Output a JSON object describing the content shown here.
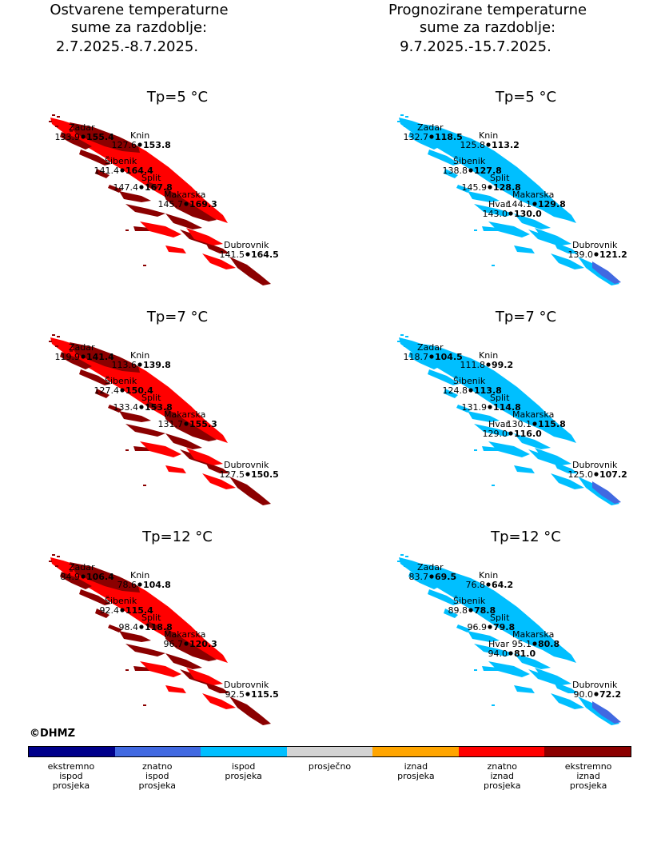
{
  "titles": {
    "left": {
      "line1": "Ostvarene temperaturne",
      "line2": "sume za razdoblje:",
      "line3": "2.7.2025.-8.7.2025."
    },
    "right": {
      "line1": "Prognozirane temperaturne",
      "line2": "sume za razdoblje:",
      "line3": "9.7.2025.-15.7.2025."
    }
  },
  "colors": {
    "left_map_main": "#ff0000",
    "left_map_dark": "#8b0000",
    "right_map_main": "#00bfff",
    "right_map_dark": "#4169e1",
    "marker": "#000000"
  },
  "panels": [
    {
      "side": "left",
      "title": "Tp=5 °C",
      "stations": [
        {
          "name": "Zadar",
          "obs": "133.9",
          "val": "155.4"
        },
        {
          "name": "Knin",
          "obs": "127.6",
          "val": "153.8"
        },
        {
          "name": "Šibenik",
          "obs": "141.4",
          "val": "164.4"
        },
        {
          "name": "Split",
          "obs": "147.4",
          "val": "167.8"
        },
        {
          "name": "Makarska",
          "obs": "145.7",
          "val": "169.3"
        },
        {
          "name": "Dubrovnik",
          "obs": "141.5",
          "val": "164.5"
        }
      ]
    },
    {
      "side": "right",
      "title": "Tp=5 °C",
      "stations": [
        {
          "name": "Zadar",
          "obs": "132.7",
          "val": "118.5"
        },
        {
          "name": "Knin",
          "obs": "125.8",
          "val": "113.2"
        },
        {
          "name": "Šibenik",
          "obs": "138.8",
          "val": "127.8"
        },
        {
          "name": "Split",
          "obs": "145.9",
          "val": "128.8"
        },
        {
          "name": "Makarska",
          "obs": "144.1",
          "val": "129.8"
        },
        {
          "name": "Hvar",
          "obs": "143.0",
          "val": "130.0"
        },
        {
          "name": "Dubrovnik",
          "obs": "139.0",
          "val": "121.2"
        }
      ]
    },
    {
      "side": "left",
      "title": "Tp=7 °C",
      "stations": [
        {
          "name": "Zadar",
          "obs": "119.9",
          "val": "141.4"
        },
        {
          "name": "Knin",
          "obs": "113.6",
          "val": "139.8"
        },
        {
          "name": "Šibenik",
          "obs": "127.4",
          "val": "150.4"
        },
        {
          "name": "Split",
          "obs": "133.4",
          "val": "153.8"
        },
        {
          "name": "Makarska",
          "obs": "131.7",
          "val": "155.3"
        },
        {
          "name": "Dubrovnik",
          "obs": "127.5",
          "val": "150.5"
        }
      ]
    },
    {
      "side": "right",
      "title": "Tp=7 °C",
      "stations": [
        {
          "name": "Zadar",
          "obs": "118.7",
          "val": "104.5"
        },
        {
          "name": "Knin",
          "obs": "111.8",
          "val": "99.2"
        },
        {
          "name": "Šibenik",
          "obs": "124.8",
          "val": "113.8"
        },
        {
          "name": "Split",
          "obs": "131.9",
          "val": "114.8"
        },
        {
          "name": "Makarska",
          "obs": "130.1",
          "val": "115.8"
        },
        {
          "name": "Hvar",
          "obs": "129.0",
          "val": "116.0"
        },
        {
          "name": "Dubrovnik",
          "obs": "125.0",
          "val": "107.2"
        }
      ]
    },
    {
      "side": "left",
      "title": "Tp=12 °C",
      "stations": [
        {
          "name": "Zadar",
          "obs": "84.9",
          "val": "106.4"
        },
        {
          "name": "Knin",
          "obs": "78.6",
          "val": "104.8"
        },
        {
          "name": "Šibenik",
          "obs": "92.4",
          "val": "115.4"
        },
        {
          "name": "Split",
          "obs": "98.4",
          "val": "118.8"
        },
        {
          "name": "Makarska",
          "obs": "96.7",
          "val": "120.3"
        },
        {
          "name": "Dubrovnik",
          "obs": "92.5",
          "val": "115.5"
        }
      ]
    },
    {
      "side": "right",
      "title": "Tp=12 °C",
      "stations": [
        {
          "name": "Zadar",
          "obs": "83.7",
          "val": "69.5"
        },
        {
          "name": "Knin",
          "obs": "76.8",
          "val": "64.2"
        },
        {
          "name": "Šibenik",
          "obs": "89.8",
          "val": "78.8"
        },
        {
          "name": "Split",
          "obs": "96.9",
          "val": "79.8"
        },
        {
          "name": "Makarska",
          "obs": "95.1",
          "val": "80.8"
        },
        {
          "name": "Hvar",
          "obs": "94.0",
          "val": "81.0"
        },
        {
          "name": "Dubrovnik",
          "obs": "90.0",
          "val": "72.2"
        }
      ]
    }
  ],
  "copyright": "©DHMZ",
  "legend": [
    {
      "color": "#00008b",
      "label": "ekstremno\nispod\nprosjeka"
    },
    {
      "color": "#4169e1",
      "label": "znatno\nispod\nprosjeka"
    },
    {
      "color": "#00bfff",
      "label": "ispod\nprosjeka"
    },
    {
      "color": "#d3d3d3",
      "label": "prosječno"
    },
    {
      "color": "#ffa500",
      "label": "iznad\nprosjeka"
    },
    {
      "color": "#ff0000",
      "label": "znatno\niznad\nprosjeka"
    },
    {
      "color": "#8b0000",
      "label": "ekstremno\niznad\nprosjeka"
    }
  ]
}
